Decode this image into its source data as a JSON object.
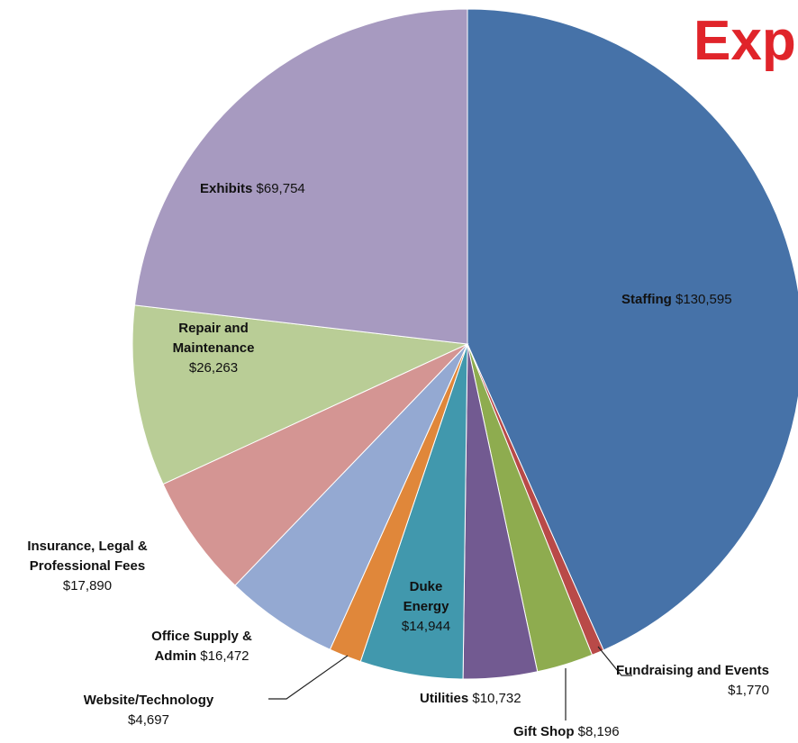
{
  "chart_data": {
    "type": "pie",
    "title": "Exp",
    "categories": [
      "Staffing",
      "Fundraising and Events",
      "Gift Shop",
      "Utilities",
      "Duke Energy",
      "Website/Technology",
      "Office Supply & Admin",
      "Insurance, Legal & Professional Fees",
      "Repair and Maintenance",
      "Exhibits"
    ],
    "values": [
      130595,
      1770,
      8196,
      10732,
      14944,
      4697,
      16472,
      17890,
      26263,
      69754
    ],
    "value_labels": [
      "$130,595",
      "$1,770",
      "$8,196",
      "$10,732",
      "$14,944",
      "$4,697",
      "$16,472",
      "$17,890",
      "$26,263",
      "$69,754"
    ],
    "colors": [
      "#4672a8",
      "#b94a48",
      "#8eac4f",
      "#725a91",
      "#4198ad",
      "#e0873a",
      "#94a9d2",
      "#d49593",
      "#b9cd96",
      "#a79ac0"
    ]
  }
}
